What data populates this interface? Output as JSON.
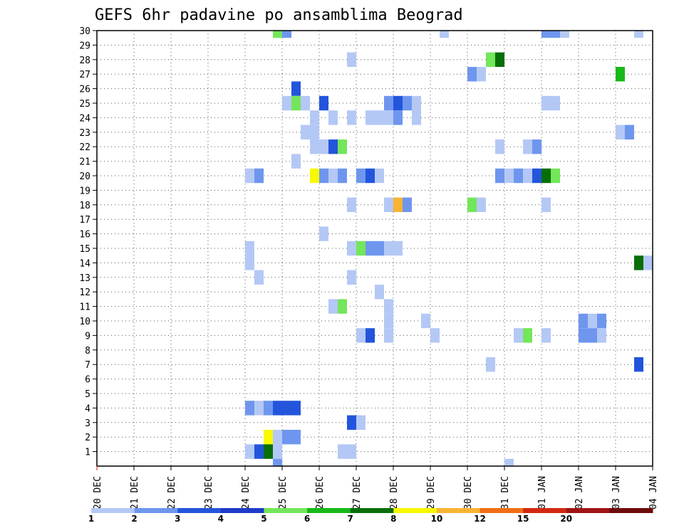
{
  "chart_data": {
    "type": "heatmap",
    "title": "GEFS 6hr padavine po ansamblima Beograd",
    "xlabel": "",
    "ylabel": "",
    "x_ticks": [
      "20 DEC",
      "21 DEC",
      "22 DEC",
      "23 DEC",
      "24 DEC",
      "25 DEC",
      "26 DEC",
      "27 DEC",
      "28 DEC",
      "29 DEC",
      "30 DEC",
      "31 DEC",
      "01 JAN",
      "02 JAN",
      "03 JAN",
      "04 JAN"
    ],
    "x_range": [
      "2020-12-20 00Z",
      "2021-01-04 00Z"
    ],
    "time_step_hours": 6,
    "y_ticks": [
      1,
      2,
      3,
      4,
      5,
      6,
      7,
      8,
      9,
      10,
      11,
      12,
      13,
      14,
      15,
      16,
      17,
      18,
      19,
      20,
      21,
      22,
      23,
      24,
      25,
      26,
      27,
      28,
      29,
      30
    ],
    "ylim": [
      0,
      30
    ],
    "grid": true,
    "colorbar_labels": [
      "1",
      "2",
      "3",
      "4",
      "5",
      "6",
      "7",
      "8",
      "10",
      "12",
      "15",
      "20"
    ],
    "colorbar_colors": [
      "#b4c8f5",
      "#6e96ee",
      "#2355dc",
      "#1e3cc8",
      "#73e65a",
      "#18b918",
      "#086e08",
      "#f8f800",
      "#f8b432",
      "#f06e14",
      "#d22814",
      "#a01414",
      "#6e0a0a"
    ],
    "cells": [
      {
        "m": 30,
        "t": "24 DEC 18Z",
        "v": 5
      },
      {
        "m": 30,
        "t": "25 DEC 00Z",
        "v": 2
      },
      {
        "m": 30,
        "t": "29 DEC 06Z",
        "v": 1
      },
      {
        "m": 30,
        "t": "01 JAN 00Z",
        "v": 2
      },
      {
        "m": 30,
        "t": "01 JAN 06Z",
        "v": 2
      },
      {
        "m": 30,
        "t": "01 JAN 12Z",
        "v": 1
      },
      {
        "m": 30,
        "t": "03 JAN 12Z",
        "v": 1
      },
      {
        "m": 28,
        "t": "26 DEC 18Z",
        "v": 1
      },
      {
        "m": 28,
        "t": "30 DEC 12Z",
        "v": 5
      },
      {
        "m": 28,
        "t": "30 DEC 18Z",
        "v": 7
      },
      {
        "m": 27,
        "t": "30 DEC 00Z",
        "v": 2
      },
      {
        "m": 27,
        "t": "30 DEC 06Z",
        "v": 1
      },
      {
        "m": 27,
        "t": "03 JAN 00Z",
        "v": 6
      },
      {
        "m": 26,
        "t": "25 DEC 06Z",
        "v": 3
      },
      {
        "m": 25,
        "t": "25 DEC 00Z",
        "v": 1
      },
      {
        "m": 25,
        "t": "25 DEC 06Z",
        "v": 5
      },
      {
        "m": 25,
        "t": "25 DEC 12Z",
        "v": 1
      },
      {
        "m": 25,
        "t": "26 DEC 00Z",
        "v": 3
      },
      {
        "m": 25,
        "t": "27 DEC 18Z",
        "v": 2
      },
      {
        "m": 25,
        "t": "28 DEC 00Z",
        "v": 3
      },
      {
        "m": 25,
        "t": "28 DEC 06Z",
        "v": 2
      },
      {
        "m": 25,
        "t": "28 DEC 12Z",
        "v": 1
      },
      {
        "m": 25,
        "t": "01 JAN 00Z",
        "v": 1
      },
      {
        "m": 25,
        "t": "01 JAN 06Z",
        "v": 1
      },
      {
        "m": 24,
        "t": "25 DEC 18Z",
        "v": 1
      },
      {
        "m": 24,
        "t": "26 DEC 06Z",
        "v": 1
      },
      {
        "m": 24,
        "t": "26 DEC 18Z",
        "v": 1
      },
      {
        "m": 24,
        "t": "27 DEC 06Z",
        "v": 1
      },
      {
        "m": 24,
        "t": "27 DEC 12Z",
        "v": 1
      },
      {
        "m": 24,
        "t": "27 DEC 18Z",
        "v": 1
      },
      {
        "m": 24,
        "t": "28 DEC 00Z",
        "v": 2
      },
      {
        "m": 24,
        "t": "28 DEC 12Z",
        "v": 1
      },
      {
        "m": 23,
        "t": "25 DEC 12Z",
        "v": 1
      },
      {
        "m": 23,
        "t": "25 DEC 18Z",
        "v": 1
      },
      {
        "m": 23,
        "t": "03 JAN 00Z",
        "v": 1
      },
      {
        "m": 23,
        "t": "03 JAN 06Z",
        "v": 2
      },
      {
        "m": 22,
        "t": "25 DEC 18Z",
        "v": 1
      },
      {
        "m": 22,
        "t": "26 DEC 00Z",
        "v": 1
      },
      {
        "m": 22,
        "t": "26 DEC 06Z",
        "v": 3
      },
      {
        "m": 22,
        "t": "26 DEC 12Z",
        "v": 5
      },
      {
        "m": 22,
        "t": "30 DEC 18Z",
        "v": 1
      },
      {
        "m": 22,
        "t": "31 DEC 12Z",
        "v": 1
      },
      {
        "m": 22,
        "t": "31 DEC 18Z",
        "v": 2
      },
      {
        "m": 21,
        "t": "25 DEC 06Z",
        "v": 1
      },
      {
        "m": 20,
        "t": "24 DEC 00Z",
        "v": 1
      },
      {
        "m": 20,
        "t": "24 DEC 06Z",
        "v": 2
      },
      {
        "m": 20,
        "t": "25 DEC 18Z",
        "v": 8
      },
      {
        "m": 20,
        "t": "26 DEC 00Z",
        "v": 2
      },
      {
        "m": 20,
        "t": "26 DEC 06Z",
        "v": 1
      },
      {
        "m": 20,
        "t": "26 DEC 12Z",
        "v": 2
      },
      {
        "m": 20,
        "t": "27 DEC 00Z",
        "v": 2
      },
      {
        "m": 20,
        "t": "27 DEC 06Z",
        "v": 3
      },
      {
        "m": 20,
        "t": "27 DEC 12Z",
        "v": 1
      },
      {
        "m": 20,
        "t": "30 DEC 18Z",
        "v": 2
      },
      {
        "m": 20,
        "t": "31 DEC 00Z",
        "v": 1
      },
      {
        "m": 20,
        "t": "31 DEC 06Z",
        "v": 2
      },
      {
        "m": 20,
        "t": "31 DEC 12Z",
        "v": 1
      },
      {
        "m": 20,
        "t": "31 DEC 18Z",
        "v": 3
      },
      {
        "m": 20,
        "t": "01 JAN 00Z",
        "v": 7
      },
      {
        "m": 20,
        "t": "01 JAN 06Z",
        "v": 5
      },
      {
        "m": 18,
        "t": "26 DEC 18Z",
        "v": 1
      },
      {
        "m": 18,
        "t": "27 DEC 18Z",
        "v": 1
      },
      {
        "m": 18,
        "t": "28 DEC 00Z",
        "v": 10
      },
      {
        "m": 18,
        "t": "28 DEC 06Z",
        "v": 2
      },
      {
        "m": 18,
        "t": "30 DEC 00Z",
        "v": 5
      },
      {
        "m": 18,
        "t": "30 DEC 06Z",
        "v": 1
      },
      {
        "m": 18,
        "t": "01 JAN 00Z",
        "v": 1
      },
      {
        "m": 16,
        "t": "26 DEC 00Z",
        "v": 1
      },
      {
        "m": 15,
        "t": "24 DEC 00Z",
        "v": 1
      },
      {
        "m": 15,
        "t": "26 DEC 18Z",
        "v": 1
      },
      {
        "m": 15,
        "t": "27 DEC 00Z",
        "v": 5
      },
      {
        "m": 15,
        "t": "27 DEC 06Z",
        "v": 2
      },
      {
        "m": 15,
        "t": "27 DEC 12Z",
        "v": 2
      },
      {
        "m": 15,
        "t": "27 DEC 18Z",
        "v": 1
      },
      {
        "m": 15,
        "t": "28 DEC 00Z",
        "v": 1
      },
      {
        "m": 14,
        "t": "24 DEC 00Z",
        "v": 1
      },
      {
        "m": 14,
        "t": "03 JAN 12Z",
        "v": 7
      },
      {
        "m": 14,
        "t": "03 JAN 18Z",
        "v": 1
      },
      {
        "m": 13,
        "t": "24 DEC 06Z",
        "v": 1
      },
      {
        "m": 13,
        "t": "26 DEC 18Z",
        "v": 1
      },
      {
        "m": 12,
        "t": "27 DEC 12Z",
        "v": 1
      },
      {
        "m": 11,
        "t": "26 DEC 06Z",
        "v": 1
      },
      {
        "m": 11,
        "t": "26 DEC 12Z",
        "v": 5
      },
      {
        "m": 11,
        "t": "27 DEC 18Z",
        "v": 1
      },
      {
        "m": 10,
        "t": "27 DEC 18Z",
        "v": 1
      },
      {
        "m": 10,
        "t": "28 DEC 18Z",
        "v": 1
      },
      {
        "m": 10,
        "t": "02 JAN 00Z",
        "v": 2
      },
      {
        "m": 10,
        "t": "02 JAN 06Z",
        "v": 1
      },
      {
        "m": 10,
        "t": "02 JAN 12Z",
        "v": 2
      },
      {
        "m": 9,
        "t": "27 DEC 00Z",
        "v": 1
      },
      {
        "m": 9,
        "t": "27 DEC 06Z",
        "v": 3
      },
      {
        "m": 9,
        "t": "27 DEC 18Z",
        "v": 1
      },
      {
        "m": 9,
        "t": "29 DEC 00Z",
        "v": 1
      },
      {
        "m": 9,
        "t": "31 DEC 06Z",
        "v": 1
      },
      {
        "m": 9,
        "t": "31 DEC 12Z",
        "v": 5
      },
      {
        "m": 9,
        "t": "01 JAN 00Z",
        "v": 1
      },
      {
        "m": 9,
        "t": "02 JAN 00Z",
        "v": 2
      },
      {
        "m": 9,
        "t": "02 JAN 06Z",
        "v": 2
      },
      {
        "m": 9,
        "t": "02 JAN 12Z",
        "v": 1
      },
      {
        "m": 7,
        "t": "30 DEC 12Z",
        "v": 1
      },
      {
        "m": 7,
        "t": "03 JAN 12Z",
        "v": 3
      },
      {
        "m": 4,
        "t": "24 DEC 00Z",
        "v": 2
      },
      {
        "m": 4,
        "t": "24 DEC 06Z",
        "v": 1
      },
      {
        "m": 4,
        "t": "24 DEC 12Z",
        "v": 2
      },
      {
        "m": 4,
        "t": "24 DEC 18Z",
        "v": 3
      },
      {
        "m": 4,
        "t": "25 DEC 00Z",
        "v": 3
      },
      {
        "m": 4,
        "t": "25 DEC 06Z",
        "v": 3
      },
      {
        "m": 3,
        "t": "26 DEC 18Z",
        "v": 3
      },
      {
        "m": 3,
        "t": "27 DEC 00Z",
        "v": 1
      },
      {
        "m": 2,
        "t": "24 DEC 12Z",
        "v": 8
      },
      {
        "m": 2,
        "t": "24 DEC 18Z",
        "v": 1
      },
      {
        "m": 2,
        "t": "25 DEC 00Z",
        "v": 2
      },
      {
        "m": 2,
        "t": "25 DEC 06Z",
        "v": 2
      },
      {
        "m": 1,
        "t": "24 DEC 00Z",
        "v": 1
      },
      {
        "m": 1,
        "t": "24 DEC 06Z",
        "v": 3
      },
      {
        "m": 1,
        "t": "24 DEC 12Z",
        "v": 7
      },
      {
        "m": 1,
        "t": "24 DEC 18Z",
        "v": 1
      },
      {
        "m": 1,
        "t": "26 DEC 12Z",
        "v": 1
      },
      {
        "m": 1,
        "t": "26 DEC 18Z",
        "v": 1
      },
      {
        "m": 0,
        "t": "24 DEC 18Z",
        "v": 2
      },
      {
        "m": 0,
        "t": "31 DEC 00Z",
        "v": 1
      }
    ]
  }
}
